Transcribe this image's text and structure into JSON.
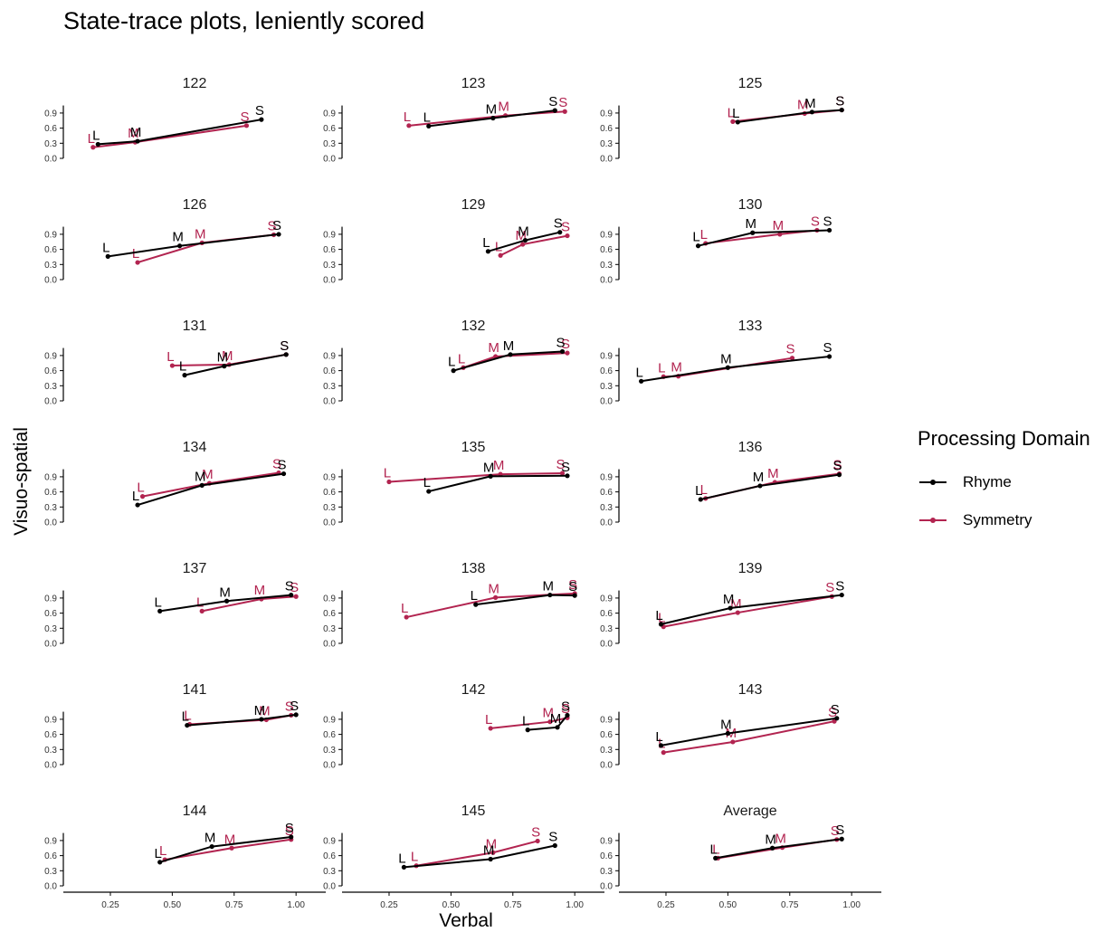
{
  "chart_data": {
    "type": "line",
    "title": "State-trace plots, leniently scored",
    "xlabel": "Verbal",
    "ylabel": "Visuo-spatial",
    "xlim": [
      0.06,
      1.12
    ],
    "ylim": [
      0.0,
      1.15
    ],
    "x_ticks": [
      "0.25",
      "0.50",
      "0.75",
      "1.00"
    ],
    "y_ticks": [
      "0.0",
      "0.3",
      "0.6",
      "0.9"
    ],
    "point_labels": [
      "L",
      "M",
      "S"
    ],
    "grid": false,
    "legend": {
      "title": "Processing Domain",
      "position": "right",
      "entries": [
        {
          "name": "Rhyme",
          "color": "#000000"
        },
        {
          "name": "Symmetry",
          "color": "#b22450"
        }
      ]
    },
    "panels": [
      {
        "title": "122",
        "Rhyme": [
          [
            0.2,
            0.28
          ],
          [
            0.36,
            0.34
          ],
          [
            0.86,
            0.77
          ]
        ],
        "Symmetry": [
          [
            0.18,
            0.22
          ],
          [
            0.35,
            0.32
          ],
          [
            0.8,
            0.65
          ]
        ]
      },
      {
        "title": "123",
        "Rhyme": [
          [
            0.41,
            0.64
          ],
          [
            0.67,
            0.8
          ],
          [
            0.92,
            0.95
          ]
        ],
        "Symmetry": [
          [
            0.33,
            0.65
          ],
          [
            0.72,
            0.85
          ],
          [
            0.96,
            0.93
          ]
        ]
      },
      {
        "title": "125",
        "Rhyme": [
          [
            0.54,
            0.72
          ],
          [
            0.84,
            0.92
          ],
          [
            0.96,
            0.96
          ]
        ],
        "Symmetry": [
          [
            0.52,
            0.73
          ],
          [
            0.81,
            0.89
          ],
          [
            0.96,
            0.96
          ]
        ]
      },
      {
        "title": "126",
        "Rhyme": [
          [
            0.24,
            0.46
          ],
          [
            0.53,
            0.67
          ],
          [
            0.93,
            0.9
          ]
        ],
        "Symmetry": [
          [
            0.36,
            0.34
          ],
          [
            0.62,
            0.73
          ],
          [
            0.91,
            0.89
          ]
        ]
      },
      {
        "title": "129",
        "Rhyme": [
          [
            0.65,
            0.56
          ],
          [
            0.8,
            0.78
          ],
          [
            0.94,
            0.94
          ]
        ],
        "Symmetry": [
          [
            0.7,
            0.48
          ],
          [
            0.79,
            0.7
          ],
          [
            0.97,
            0.87
          ]
        ]
      },
      {
        "title": "130",
        "Rhyme": [
          [
            0.38,
            0.67
          ],
          [
            0.6,
            0.93
          ],
          [
            0.91,
            0.98
          ]
        ],
        "Symmetry": [
          [
            0.41,
            0.72
          ],
          [
            0.71,
            0.9
          ],
          [
            0.86,
            0.98
          ]
        ]
      },
      {
        "title": "131",
        "Rhyme": [
          [
            0.55,
            0.51
          ],
          [
            0.71,
            0.69
          ],
          [
            0.96,
            0.92
          ]
        ],
        "Symmetry": [
          [
            0.5,
            0.7
          ],
          [
            0.73,
            0.72
          ],
          [
            0.96,
            0.92
          ]
        ]
      },
      {
        "title": "132",
        "Rhyme": [
          [
            0.51,
            0.6
          ],
          [
            0.74,
            0.92
          ],
          [
            0.95,
            0.98
          ]
        ],
        "Symmetry": [
          [
            0.55,
            0.66
          ],
          [
            0.68,
            0.88
          ],
          [
            0.97,
            0.95
          ]
        ]
      },
      {
        "title": "133",
        "Rhyme": [
          [
            0.15,
            0.39
          ],
          [
            0.5,
            0.66
          ],
          [
            0.91,
            0.88
          ]
        ],
        "Symmetry": [
          [
            0.24,
            0.48
          ],
          [
            0.3,
            0.49
          ],
          [
            0.76,
            0.85
          ]
        ]
      },
      {
        "title": "134",
        "Rhyme": [
          [
            0.36,
            0.34
          ],
          [
            0.62,
            0.73
          ],
          [
            0.95,
            0.96
          ]
        ],
        "Symmetry": [
          [
            0.38,
            0.51
          ],
          [
            0.65,
            0.77
          ],
          [
            0.93,
            0.98
          ]
        ]
      },
      {
        "title": "135",
        "Rhyme": [
          [
            0.41,
            0.61
          ],
          [
            0.66,
            0.91
          ],
          [
            0.97,
            0.92
          ]
        ],
        "Symmetry": [
          [
            0.25,
            0.8
          ],
          [
            0.7,
            0.95
          ],
          [
            0.95,
            0.97
          ]
        ]
      },
      {
        "title": "136",
        "Rhyme": [
          [
            0.39,
            0.45
          ],
          [
            0.63,
            0.72
          ],
          [
            0.95,
            0.94
          ]
        ],
        "Symmetry": [
          [
            0.41,
            0.47
          ],
          [
            0.69,
            0.79
          ],
          [
            0.95,
            0.96
          ]
        ]
      },
      {
        "title": "137",
        "Rhyme": [
          [
            0.45,
            0.64
          ],
          [
            0.72,
            0.84
          ],
          [
            0.98,
            0.96
          ]
        ],
        "Symmetry": [
          [
            0.62,
            0.64
          ],
          [
            0.86,
            0.88
          ],
          [
            1.0,
            0.93
          ]
        ]
      },
      {
        "title": "138",
        "Rhyme": [
          [
            0.6,
            0.77
          ],
          [
            0.9,
            0.96
          ],
          [
            1.0,
            0.95
          ]
        ],
        "Symmetry": [
          [
            0.32,
            0.52
          ],
          [
            0.68,
            0.91
          ],
          [
            1.0,
            0.99
          ]
        ]
      },
      {
        "title": "139",
        "Rhyme": [
          [
            0.23,
            0.38
          ],
          [
            0.51,
            0.7
          ],
          [
            0.96,
            0.96
          ]
        ],
        "Symmetry": [
          [
            0.24,
            0.33
          ],
          [
            0.54,
            0.61
          ],
          [
            0.92,
            0.93
          ]
        ]
      },
      {
        "title": "141",
        "Rhyme": [
          [
            0.56,
            0.78
          ],
          [
            0.86,
            0.9
          ],
          [
            1.0,
            0.99
          ]
        ],
        "Symmetry": [
          [
            0.57,
            0.8
          ],
          [
            0.88,
            0.89
          ],
          [
            0.98,
            0.98
          ]
        ]
      },
      {
        "title": "142",
        "Rhyme": [
          [
            0.81,
            0.69
          ],
          [
            0.93,
            0.74
          ],
          [
            0.97,
            0.98
          ]
        ],
        "Symmetry": [
          [
            0.66,
            0.72
          ],
          [
            0.9,
            0.85
          ],
          [
            0.97,
            0.93
          ]
        ]
      },
      {
        "title": "143",
        "Rhyme": [
          [
            0.23,
            0.38
          ],
          [
            0.5,
            0.62
          ],
          [
            0.94,
            0.92
          ]
        ],
        "Symmetry": [
          [
            0.24,
            0.24
          ],
          [
            0.52,
            0.45
          ],
          [
            0.93,
            0.86
          ]
        ]
      },
      {
        "title": "144",
        "Rhyme": [
          [
            0.45,
            0.47
          ],
          [
            0.66,
            0.78
          ],
          [
            0.98,
            0.97
          ]
        ],
        "Symmetry": [
          [
            0.47,
            0.52
          ],
          [
            0.74,
            0.75
          ],
          [
            0.98,
            0.92
          ]
        ]
      },
      {
        "title": "145",
        "Rhyme": [
          [
            0.31,
            0.37
          ],
          [
            0.66,
            0.53
          ],
          [
            0.92,
            0.8
          ]
        ],
        "Symmetry": [
          [
            0.36,
            0.4
          ],
          [
            0.67,
            0.66
          ],
          [
            0.85,
            0.89
          ]
        ]
      },
      {
        "title": "Average",
        "Rhyme": [
          [
            0.45,
            0.55
          ],
          [
            0.68,
            0.75
          ],
          [
            0.96,
            0.93
          ]
        ],
        "Symmetry": [
          [
            0.46,
            0.55
          ],
          [
            0.72,
            0.76
          ],
          [
            0.94,
            0.92
          ]
        ]
      }
    ]
  }
}
